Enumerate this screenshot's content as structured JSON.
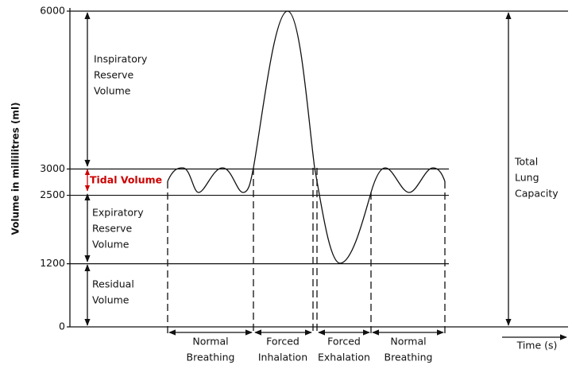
{
  "y_axis": {
    "label": "Volume in millilitres (ml)",
    "yticks": [
      0,
      1200,
      2500,
      3000,
      6000
    ]
  },
  "volumes": {
    "inspiratory_reserve": [
      "Inspiratory",
      "Reserve",
      "Volume"
    ],
    "tidal": "Tidal Volume",
    "expiratory_reserve": [
      "Expiratory",
      "Reserve",
      "Volume"
    ],
    "residual": [
      "Residual",
      "Volume"
    ],
    "total_lung_capacity": [
      "Total",
      "Lung",
      "Capacity"
    ]
  },
  "phases": [
    [
      "Normal",
      "Breathing"
    ],
    [
      "Forced",
      "Inhalation"
    ],
    [
      "Forced",
      "Exhalation"
    ],
    [
      "Normal",
      "Breathing"
    ]
  ],
  "x_axis_label": "Time (s)"
}
